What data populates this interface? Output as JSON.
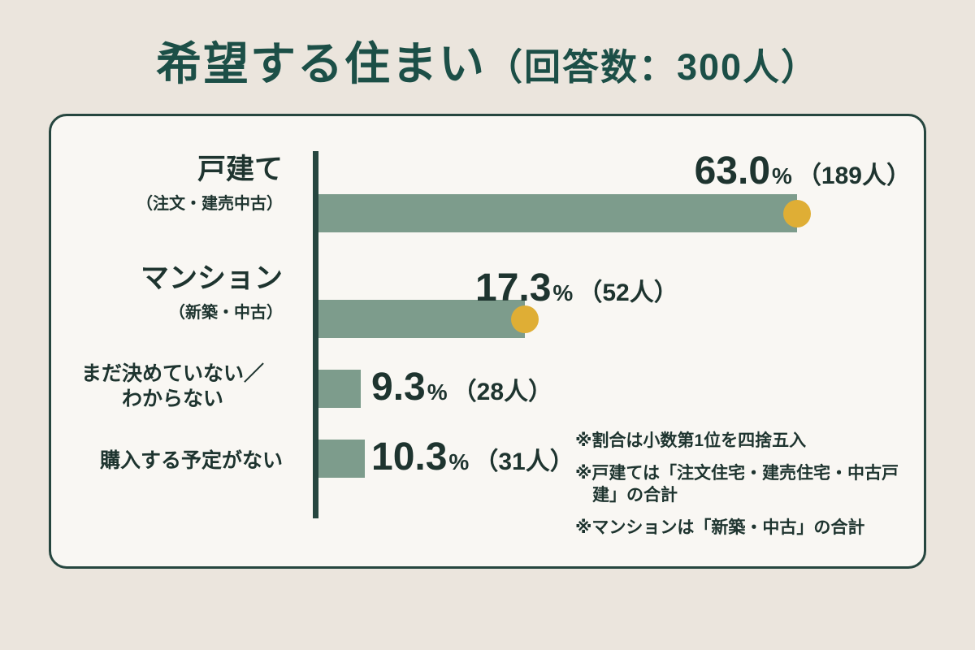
{
  "header": {
    "title_main": "希望する住まい",
    "title_sub": "（回答数：300人）"
  },
  "chart_data": {
    "type": "bar",
    "orientation": "horizontal",
    "title": "希望する住まい（回答数：300人）",
    "total_responses": 300,
    "unit": "%",
    "categories": [
      "戸建て（注文・建売中古）",
      "マンション（新築・中古）",
      "まだ決めていない／わからない",
      "購入する予定がない"
    ],
    "values": [
      63.0,
      17.3,
      9.3,
      10.3
    ],
    "counts": [
      189,
      52,
      28,
      31
    ],
    "items": [
      {
        "label_main": "戸建て",
        "label_sub": "（注文・建売中古）",
        "value": "63.0",
        "unit": "%",
        "count": "（189人）"
      },
      {
        "label_main": "マンション",
        "label_sub": "（新築・中古）",
        "value": "17.3",
        "unit": "%",
        "count": "（52人）"
      },
      {
        "label_line1": "まだ決めていない／",
        "label_line2": "わからない",
        "value": "9.3",
        "unit": "%",
        "count": "（28人）"
      },
      {
        "label_main": "購入する予定がない",
        "value": "10.3",
        "unit": "%",
        "count": "（31人）"
      }
    ],
    "colors": {
      "background": "#ebe5dd",
      "card_background": "#f9f7f3",
      "bar": "#7d9c8c",
      "marker": "#dfae35",
      "axis": "#26463f",
      "title": "#1c4f47",
      "text": "#1e342f"
    },
    "legend": "none",
    "grid": "off"
  },
  "notes": {
    "items": [
      "※割合は小数第1位を四捨五入",
      "※戸建ては「注文住宅・建売住宅・中古戸建」の合計",
      "※マンションは「新築・中古」の合計"
    ]
  }
}
